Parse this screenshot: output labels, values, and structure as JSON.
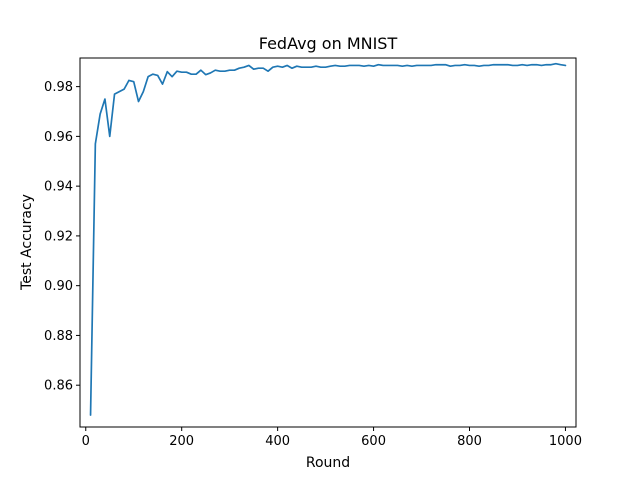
{
  "chart_data": {
    "type": "line",
    "title": "FedAvg on MNIST",
    "xlabel": "Round",
    "ylabel": "Test Accuracy",
    "xlim": [
      -12,
      1022
    ],
    "ylim": [
      0.8432,
      0.9915
    ],
    "xticks": [
      0,
      200,
      400,
      600,
      800,
      1000
    ],
    "yticks": [
      0.86,
      0.88,
      0.9,
      0.92,
      0.94,
      0.96,
      0.98
    ],
    "ytick_labels": [
      "0.86",
      "0.88",
      "0.90",
      "0.92",
      "0.94",
      "0.96",
      "0.98"
    ],
    "grid": false,
    "line_color": "#1f77b4",
    "series": [
      {
        "x": [
          10,
          20,
          30,
          40,
          50,
          60,
          70,
          80,
          90,
          100,
          110,
          120,
          130,
          140,
          150,
          160,
          170,
          180,
          190,
          200,
          210,
          220,
          230,
          240,
          250,
          260,
          270,
          280,
          290,
          300,
          310,
          320,
          330,
          340,
          350,
          360,
          370,
          380,
          390,
          400,
          410,
          420,
          430,
          440,
          450,
          460,
          470,
          480,
          490,
          500,
          510,
          520,
          530,
          540,
          550,
          560,
          570,
          580,
          590,
          600,
          610,
          620,
          630,
          640,
          650,
          660,
          670,
          680,
          690,
          700,
          710,
          720,
          730,
          740,
          750,
          760,
          770,
          780,
          790,
          800,
          810,
          820,
          830,
          840,
          850,
          860,
          870,
          880,
          890,
          900,
          910,
          920,
          930,
          940,
          950,
          960,
          970,
          980,
          990,
          1000
        ],
        "y": [
          0.848,
          0.957,
          0.969,
          0.975,
          0.96,
          0.977,
          0.978,
          0.979,
          0.9825,
          0.982,
          0.974,
          0.978,
          0.984,
          0.985,
          0.9845,
          0.981,
          0.986,
          0.984,
          0.9862,
          0.9858,
          0.9858,
          0.985,
          0.985,
          0.9866,
          0.9848,
          0.9855,
          0.9866,
          0.9862,
          0.9862,
          0.9866,
          0.9866,
          0.9874,
          0.9878,
          0.9885,
          0.987,
          0.9874,
          0.9874,
          0.9862,
          0.9878,
          0.9882,
          0.9878,
          0.9885,
          0.9874,
          0.9882,
          0.9878,
          0.9878,
          0.9878,
          0.9882,
          0.9878,
          0.9878,
          0.9882,
          0.9885,
          0.9882,
          0.9882,
          0.9885,
          0.9885,
          0.9885,
          0.9882,
          0.9885,
          0.9882,
          0.9888,
          0.9885,
          0.9885,
          0.9885,
          0.9885,
          0.9882,
          0.9885,
          0.9882,
          0.9885,
          0.9885,
          0.9885,
          0.9885,
          0.9888,
          0.9888,
          0.9888,
          0.9882,
          0.9885,
          0.9885,
          0.9888,
          0.9885,
          0.9885,
          0.9882,
          0.9885,
          0.9885,
          0.9888,
          0.9888,
          0.9888,
          0.9888,
          0.9885,
          0.9885,
          0.9888,
          0.9885,
          0.9888,
          0.9888,
          0.9885,
          0.9888,
          0.9888,
          0.9892,
          0.9888,
          0.9885
        ]
      }
    ]
  }
}
